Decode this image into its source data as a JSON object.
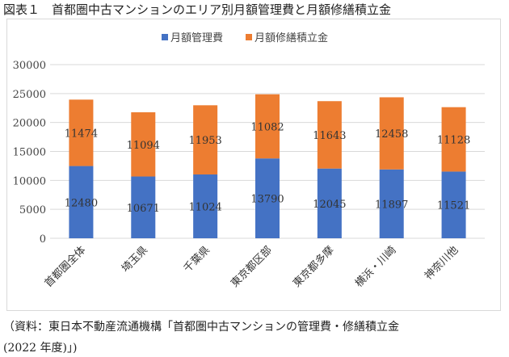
{
  "figure_title": "図表１　首都圏中古マンションのエリア別月額管理費と月額修繕積立金",
  "source_line1": "（資料：東日本不動産流通機構「首都圏中古マンションの管理費・修繕積立金",
  "source_line2": "(2022 年度)」)",
  "chart_data": {
    "type": "bar",
    "stacked": true,
    "categories": [
      "首都圏全体",
      "埼玉県",
      "千葉県",
      "東京都区部",
      "東京都多摩",
      "横浜・川崎",
      "神奈川他"
    ],
    "series": [
      {
        "name": "月額管理費",
        "color": "#4472c4",
        "values": [
          12480,
          10671,
          11024,
          13790,
          12045,
          11897,
          11521
        ]
      },
      {
        "name": "月額修繕積立金",
        "color": "#ed7d31",
        "values": [
          11474,
          11094,
          11953,
          11082,
          11643,
          12458,
          11128
        ]
      }
    ],
    "ylim": [
      0,
      30000
    ],
    "yticks": [
      0,
      5000,
      10000,
      15000,
      20000,
      25000,
      30000
    ],
    "grid": true,
    "legend": "top",
    "data_labels": true
  }
}
